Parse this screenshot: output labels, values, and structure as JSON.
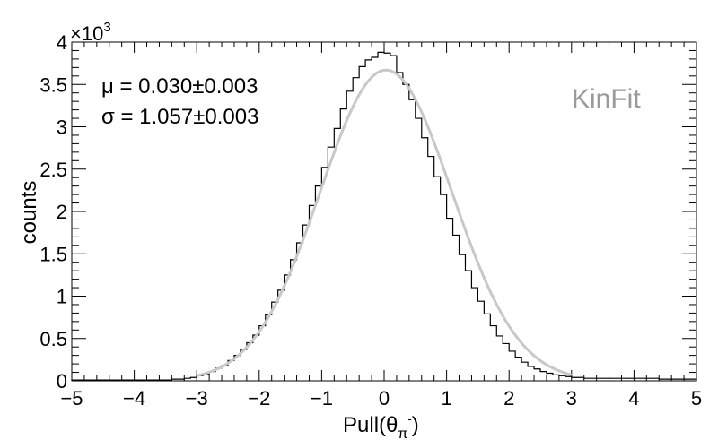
{
  "chart_data": {
    "type": "histogram",
    "xlabel": "Pull(θ",
    "xlabel_sub": "π",
    "xlabel_sup": "-",
    "xlabel_close": ")",
    "ylabel": "counts",
    "y_multiplier": "×10",
    "y_multiplier_exp": "3",
    "xlim": [
      -5,
      5
    ],
    "ylim": [
      0,
      4
    ],
    "x_major_ticks": [
      -5,
      -4,
      -3,
      -2,
      -1,
      0,
      1,
      2,
      3,
      4,
      5
    ],
    "y_major_ticks": [
      0,
      0.5,
      1,
      1.5,
      2,
      2.5,
      3,
      3.5,
      4
    ],
    "x_tick_labels": [
      "−5",
      "−4",
      "−3",
      "−2",
      "−1",
      "0",
      "1",
      "2",
      "3",
      "4",
      "5"
    ],
    "y_tick_labels": [
      "0",
      "0.5",
      "1",
      "1.5",
      "2",
      "2.5",
      "3",
      "3.5",
      "4"
    ],
    "bin_width": 0.1,
    "bin_low_edges": [
      -5.0,
      -4.9,
      -4.8,
      -4.7,
      -4.6,
      -4.5,
      -4.4,
      -4.3,
      -4.2,
      -4.1,
      -4.0,
      -3.9,
      -3.8,
      -3.7,
      -3.6,
      -3.5,
      -3.4,
      -3.3,
      -3.2,
      -3.1,
      -3.0,
      -2.9,
      -2.8,
      -2.7,
      -2.6,
      -2.5,
      -2.4,
      -2.3,
      -2.2,
      -2.1,
      -2.0,
      -1.9,
      -1.8,
      -1.7,
      -1.6,
      -1.5,
      -1.4,
      -1.3,
      -1.2,
      -1.1,
      -1.0,
      -0.9,
      -0.8,
      -0.7,
      -0.6,
      -0.5,
      -0.4,
      -0.3,
      -0.2,
      -0.1,
      0.0,
      0.1,
      0.2,
      0.3,
      0.4,
      0.5,
      0.6,
      0.7,
      0.8,
      0.9,
      1.0,
      1.1,
      1.2,
      1.3,
      1.4,
      1.5,
      1.6,
      1.7,
      1.8,
      1.9,
      2.0,
      2.1,
      2.2,
      2.3,
      2.4,
      2.5,
      2.6,
      2.7,
      2.8,
      2.9,
      3.0,
      3.1,
      3.2,
      3.3,
      3.4,
      3.5,
      3.6,
      3.7,
      3.8,
      3.9,
      4.0,
      4.1,
      4.2,
      4.3,
      4.4,
      4.5,
      4.6,
      4.7,
      4.8,
      4.9
    ],
    "counts_thousands": [
      0.01,
      0.01,
      0.01,
      0.01,
      0.01,
      0.01,
      0.01,
      0.01,
      0.01,
      0.01,
      0.01,
      0.01,
      0.01,
      0.01,
      0.01,
      0.01,
      0.02,
      0.02,
      0.03,
      0.04,
      0.06,
      0.08,
      0.11,
      0.15,
      0.18,
      0.24,
      0.3,
      0.37,
      0.45,
      0.54,
      0.65,
      0.78,
      0.93,
      1.07,
      1.25,
      1.43,
      1.63,
      1.84,
      2.07,
      2.3,
      2.52,
      2.76,
      2.98,
      3.21,
      3.42,
      3.58,
      3.71,
      3.79,
      3.82,
      3.88,
      3.87,
      3.84,
      3.64,
      3.5,
      3.32,
      3.1,
      2.87,
      2.65,
      2.41,
      2.2,
      1.92,
      1.72,
      1.49,
      1.3,
      1.1,
      0.94,
      0.79,
      0.65,
      0.53,
      0.44,
      0.35,
      0.28,
      0.22,
      0.17,
      0.14,
      0.11,
      0.09,
      0.07,
      0.06,
      0.05,
      0.04,
      0.04,
      0.03,
      0.03,
      0.03,
      0.03,
      0.03,
      0.03,
      0.03,
      0.03,
      0.03,
      0.03,
      0.03,
      0.03,
      0.02,
      0.02,
      0.02,
      0.02,
      0.02,
      0.02
    ],
    "fit": {
      "function": "gaussian",
      "amplitude_thousands": 3.67,
      "mean": 0.03,
      "sigma": 1.057,
      "x_range": [
        -3.0,
        3.0
      ],
      "color": "#c8c8c8"
    },
    "annotations": {
      "mu_text": "μ = 0.030±0.003",
      "sigma_text": "σ = 1.057±0.003",
      "method_label": "KinFit",
      "method_color": "#9a9a9a"
    },
    "colors": {
      "histogram": "#000000",
      "frame": "#000000"
    },
    "grid": false
  }
}
